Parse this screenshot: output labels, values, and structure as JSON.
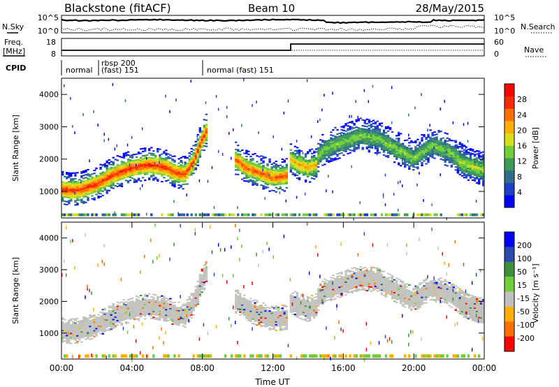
{
  "header": {
    "station": "Blackstone (fitACF)",
    "beam": "Beam 10",
    "date": "28/May/2015"
  },
  "top_panels": {
    "nsky_label": "N.Sky",
    "nsky_ticks": [
      "10^5",
      "10^0"
    ],
    "nsearch_label": "N.Search",
    "nsearch_ticks": [
      "10^5",
      "10^0"
    ],
    "freq_label_1": "Freq.",
    "freq_label_2": "[MHz]",
    "freq_ticks": [
      "18",
      "8"
    ],
    "nave_label": "Nave",
    "nave_ticks": [
      "60",
      "0"
    ],
    "cpid_label": "CPID",
    "cpid_segments": [
      {
        "label": "normal",
        "label2": ""
      },
      {
        "label": "rbsp 200",
        "label2": "(fast) 151"
      },
      {
        "label": "normal (fast)  151",
        "label2": ""
      }
    ]
  },
  "x_axis": {
    "label": "Time UT",
    "ticks": [
      "00:00",
      "04:00",
      "08:00",
      "12:00",
      "16:00",
      "20:00",
      "00:00"
    ]
  },
  "chart_data": [
    {
      "type": "heatmap",
      "title": "",
      "xlabel": "Time UT",
      "ylabel": "Slant Range [km]",
      "xlim": [
        0,
        24
      ],
      "ylim": [
        180,
        4500
      ],
      "y_ticks": [
        "1000",
        "2000",
        "3000",
        "4000"
      ],
      "colorbar_label": "Power [dB]",
      "colorbar_ticks": [
        "4",
        "8",
        "12",
        "16",
        "20",
        "24",
        "28"
      ],
      "colorbar_range": [
        0,
        30
      ],
      "colors": [
        "#0000ff",
        "#1f3fc8",
        "#2e6e8a",
        "#3f9a5a",
        "#6ecf3a",
        "#d8dd1e",
        "#ffb000",
        "#ff7000",
        "#ff2a00",
        "#ff0000"
      ],
      "bands": [
        {
          "x": [
            0,
            0.5,
            1,
            2,
            3,
            4,
            5,
            6,
            6.5,
            7,
            7.5,
            8,
            8.3
          ],
          "y": [
            1050,
            1000,
            1020,
            1200,
            1500,
            1700,
            1800,
            1700,
            1550,
            1500,
            1900,
            2600,
            2900
          ],
          "peak_db": 24
        },
        {
          "x": [
            9.8,
            10.5,
            11,
            11.5,
            12,
            12.8
          ],
          "y": [
            2000,
            1700,
            1600,
            1500,
            1400,
            1450
          ],
          "peak_db": 22
        },
        {
          "x": [
            13,
            13.5,
            14,
            14.5
          ],
          "y": [
            1950,
            1800,
            1700,
            1800
          ],
          "peak_db": 18
        },
        {
          "x": [
            14.5,
            15,
            16,
            17,
            18,
            19,
            20,
            21,
            22,
            23,
            24
          ],
          "y": [
            2000,
            2300,
            2500,
            2700,
            2600,
            2300,
            2000,
            2400,
            2200,
            1800,
            1600
          ],
          "peak_db": 12
        },
        {
          "x": [
            22.6,
            23,
            23.5,
            24
          ],
          "y": [
            1900,
            1800,
            1700,
            1650
          ],
          "peak_db": 14
        }
      ]
    },
    {
      "type": "heatmap",
      "title": "",
      "xlabel": "Time UT",
      "ylabel": "Slant Range [km]",
      "xlim": [
        0,
        24
      ],
      "ylim": [
        180,
        4500
      ],
      "y_ticks": [
        "1000",
        "2000",
        "3000",
        "4000"
      ],
      "colorbar_label": "Velocity [m s^-1]",
      "colorbar_ticks": [
        "200",
        "100",
        "50",
        "15",
        "-15",
        "-50",
        "-100",
        "-200"
      ],
      "colorbar_range": [
        -250,
        250
      ],
      "colors": [
        "#0000ff",
        "#2a4ab0",
        "#3f8f3f",
        "#6ecf3a",
        "#c0c0c0",
        "#ffb000",
        "#ff7000",
        "#ff0000"
      ],
      "ground_scatter_color": "#c0c0bc"
    }
  ]
}
